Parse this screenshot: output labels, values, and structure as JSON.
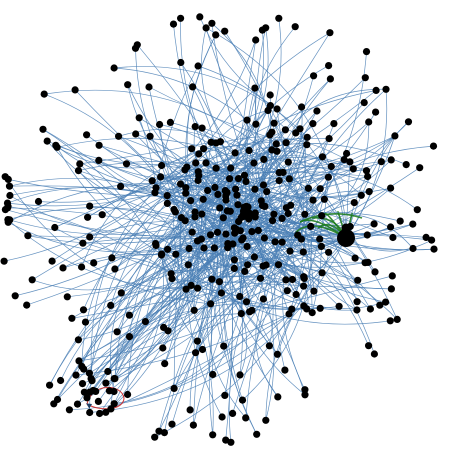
{
  "graph": {
    "type": "force-directed-network",
    "node_color": "#000000",
    "edge_color": "#4a7fb5",
    "arrow_color": "#1f3f66",
    "highlight_edge_color": "#1a7a1a",
    "highlight_loop_color": "#cc1a1a",
    "background": "#ffffff",
    "node_count_hint": 420,
    "hub_node": {
      "label": "",
      "shape": "large-circle",
      "fill": "#000000"
    },
    "loop_edge": {
      "color": "#cc1a1a"
    }
  }
}
